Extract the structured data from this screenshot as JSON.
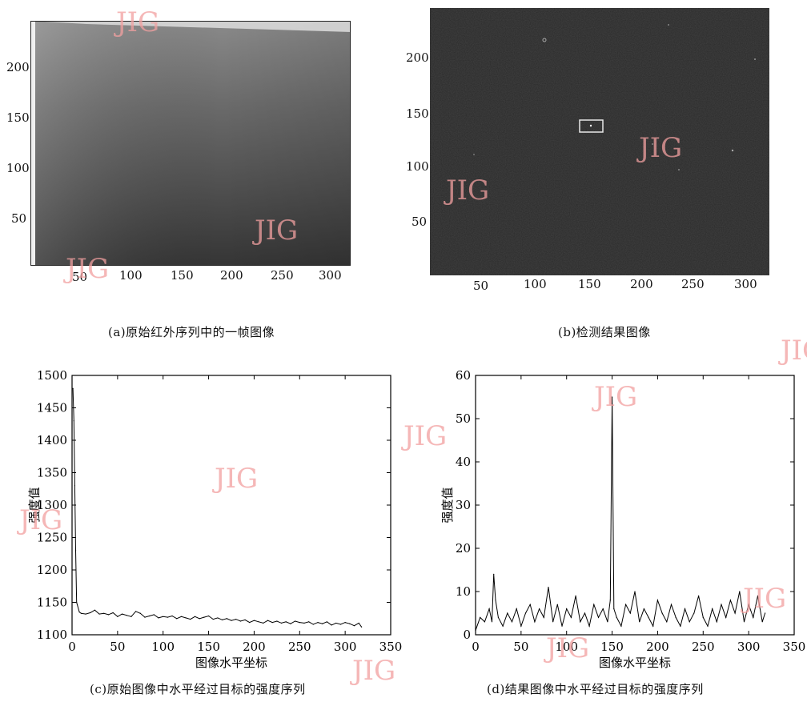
{
  "panel_a": {
    "caption": "(a)原始红外序列中的一帧图像",
    "xticks": [
      "50",
      "100",
      "150",
      "200",
      "250",
      "300"
    ],
    "yticks": [
      "50",
      "100",
      "150",
      "200"
    ]
  },
  "panel_b": {
    "caption": "(b)检测结果图像",
    "xticks": [
      "50",
      "100",
      "150",
      "200",
      "250",
      "300"
    ],
    "yticks": [
      "50",
      "100",
      "150",
      "200"
    ]
  },
  "panel_c": {
    "caption": "(c)原始图像中水平经过目标的强度序列"
  },
  "panel_d": {
    "caption": "(d)结果图像中水平经过目标的强度序列"
  },
  "watermark_text": "JIG",
  "chart_data": [
    {
      "type": "line",
      "xlabel": "图像水平坐标",
      "ylabel": "强度值",
      "xlim": [
        0,
        350
      ],
      "ylim": [
        1100,
        1500
      ],
      "xticks": [
        0,
        50,
        100,
        150,
        200,
        250,
        300,
        350
      ],
      "yticks": [
        1100,
        1150,
        1200,
        1250,
        1300,
        1350,
        1400,
        1450,
        1500
      ],
      "x": [
        1,
        2,
        3,
        4,
        5,
        8,
        10,
        15,
        20,
        25,
        30,
        35,
        40,
        45,
        50,
        55,
        60,
        65,
        70,
        75,
        80,
        85,
        90,
        95,
        100,
        105,
        110,
        115,
        120,
        125,
        130,
        135,
        140,
        145,
        150,
        155,
        160,
        165,
        170,
        175,
        180,
        185,
        190,
        195,
        200,
        205,
        210,
        215,
        220,
        225,
        230,
        235,
        240,
        245,
        250,
        255,
        260,
        265,
        270,
        275,
        280,
        285,
        290,
        295,
        300,
        305,
        310,
        315,
        318
      ],
      "y": [
        1480,
        1430,
        1330,
        1230,
        1150,
        1135,
        1133,
        1132,
        1134,
        1138,
        1132,
        1133,
        1131,
        1134,
        1128,
        1132,
        1130,
        1128,
        1136,
        1133,
        1127,
        1129,
        1131,
        1126,
        1128,
        1127,
        1129,
        1125,
        1128,
        1126,
        1124,
        1128,
        1125,
        1127,
        1129,
        1124,
        1126,
        1123,
        1125,
        1122,
        1124,
        1121,
        1123,
        1119,
        1122,
        1120,
        1118,
        1122,
        1119,
        1121,
        1118,
        1120,
        1117,
        1121,
        1119,
        1118,
        1120,
        1116,
        1119,
        1117,
        1120,
        1115,
        1118,
        1116,
        1119,
        1117,
        1114,
        1118,
        1112
      ]
    },
    {
      "type": "line",
      "xlabel": "图像水平坐标",
      "ylabel": "强度值",
      "xlim": [
        0,
        350
      ],
      "ylim": [
        0,
        60
      ],
      "xticks": [
        0,
        50,
        100,
        150,
        200,
        250,
        300,
        350
      ],
      "yticks": [
        0,
        10,
        20,
        30,
        40,
        50,
        60
      ],
      "x": [
        0,
        5,
        10,
        15,
        18,
        20,
        22,
        25,
        30,
        35,
        40,
        45,
        50,
        55,
        60,
        65,
        70,
        75,
        80,
        85,
        90,
        95,
        100,
        105,
        110,
        115,
        120,
        125,
        130,
        135,
        140,
        145,
        148,
        150,
        152,
        155,
        160,
        165,
        170,
        175,
        180,
        185,
        190,
        195,
        200,
        205,
        210,
        215,
        220,
        225,
        230,
        235,
        240,
        245,
        250,
        255,
        260,
        265,
        270,
        275,
        280,
        285,
        290,
        295,
        300,
        305,
        310,
        315,
        318
      ],
      "y": [
        1,
        4,
        3,
        6,
        3,
        14,
        8,
        4,
        2,
        5,
        3,
        6,
        2,
        5,
        7,
        3,
        6,
        4,
        11,
        3,
        7,
        2,
        6,
        4,
        9,
        3,
        5,
        2,
        7,
        4,
        6,
        3,
        8,
        55,
        6,
        4,
        2,
        7,
        5,
        10,
        3,
        6,
        4,
        2,
        8,
        5,
        3,
        7,
        4,
        2,
        6,
        3,
        5,
        9,
        4,
        2,
        6,
        3,
        7,
        4,
        8,
        5,
        10,
        3,
        7,
        4,
        9,
        3,
        5
      ]
    }
  ]
}
